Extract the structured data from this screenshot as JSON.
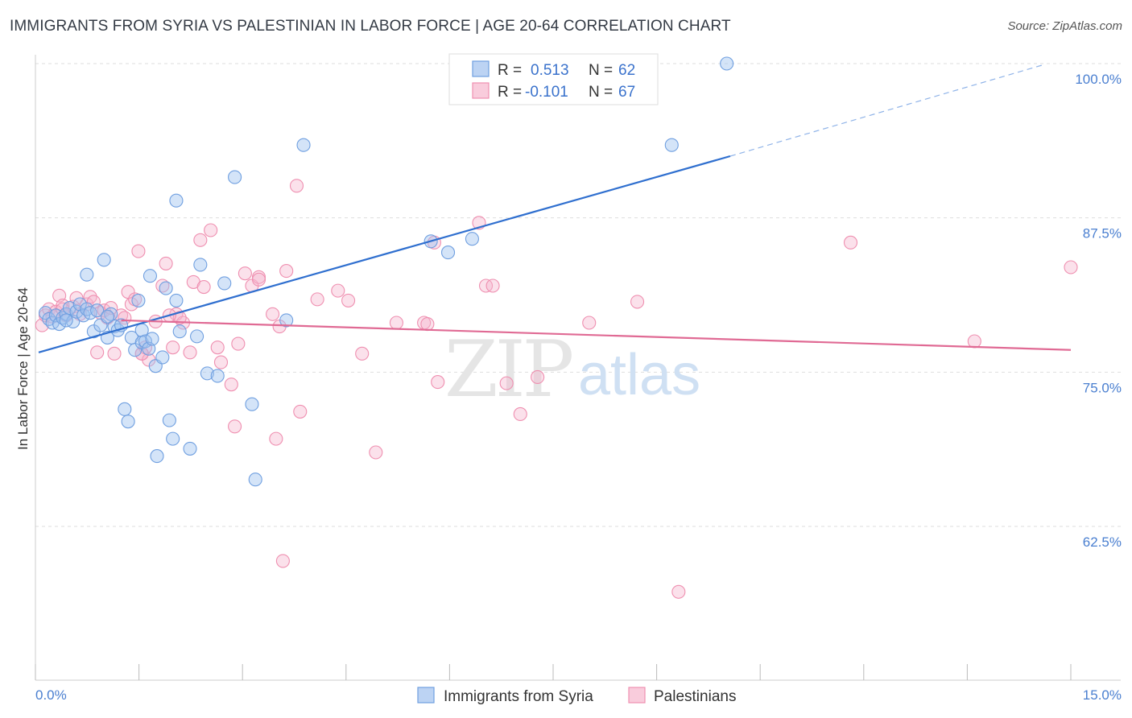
{
  "title": "IMMIGRANTS FROM SYRIA VS PALESTINIAN IN LABOR FORCE | AGE 20-64 CORRELATION CHART",
  "source": "Source: ZipAtlas.com",
  "watermark": {
    "zip": "ZIP",
    "atlas": "atlas"
  },
  "colors": {
    "syria": "#6f9fe0",
    "syria_line": "#2f6fcf",
    "pal": "#ef8fb0",
    "pal_line": "#e06a94",
    "tick_text": "#4a7fd0"
  },
  "legend_box": [
    {
      "r_label": "R =",
      "r_value": "0.513",
      "n_label": "N =",
      "n_value": "62"
    },
    {
      "r_label": "R =",
      "r_value": "-0.101",
      "n_label": "N =",
      "n_value": "67"
    }
  ],
  "chart_data": {
    "type": "scatter",
    "xlabel": "",
    "ylabel": "In Labor Force | Age 20-64",
    "xlim": [
      0,
      15
    ],
    "ylim": [
      52,
      101.5
    ],
    "x_tick_labels": [
      {
        "v": 0,
        "t": "0.0%"
      },
      {
        "v": 15,
        "t": "15.0%"
      }
    ],
    "y_tick_labels": [
      {
        "v": 100,
        "t": "100.0%"
      },
      {
        "v": 87.5,
        "t": "87.5%"
      },
      {
        "v": 75,
        "t": "75.0%"
      },
      {
        "v": 62.5,
        "t": "62.5%"
      }
    ],
    "grid": true,
    "legend": "bottom",
    "series": [
      {
        "name": "Immigrants from Syria",
        "trend": {
          "x0": 0,
          "y0": 76.6,
          "x1": 10.05,
          "y1": 92.5,
          "dash_to_x": 14.6,
          "dash_to_y": 99.9
        },
        "points": [
          [
            0.1,
            79.8
          ],
          [
            0.15,
            79.3
          ],
          [
            0.2,
            79.0
          ],
          [
            0.25,
            79.6
          ],
          [
            0.3,
            78.9
          ],
          [
            0.35,
            79.4
          ],
          [
            0.4,
            79.7
          ],
          [
            0.45,
            80.2
          ],
          [
            0.5,
            79.1
          ],
          [
            0.55,
            79.9
          ],
          [
            0.6,
            80.5
          ],
          [
            0.65,
            79.6
          ],
          [
            0.7,
            80.1
          ],
          [
            0.75,
            79.8
          ],
          [
            0.8,
            78.3
          ],
          [
            0.85,
            80.0
          ],
          [
            0.9,
            78.8
          ],
          [
            0.95,
            84.1
          ],
          [
            1.0,
            77.8
          ],
          [
            1.05,
            79.7
          ],
          [
            0.7,
            82.9
          ],
          [
            1.1,
            78.7
          ],
          [
            1.15,
            78.4
          ],
          [
            1.2,
            78.8
          ],
          [
            1.25,
            72.0
          ],
          [
            1.3,
            71.0
          ],
          [
            1.35,
            77.8
          ],
          [
            1.4,
            76.8
          ],
          [
            1.45,
            80.8
          ],
          [
            1.5,
            78.4
          ],
          [
            1.5,
            77.4
          ],
          [
            1.55,
            77.5
          ],
          [
            1.6,
            76.9
          ],
          [
            1.62,
            82.8
          ],
          [
            1.65,
            77.7
          ],
          [
            1.7,
            75.5
          ],
          [
            1.72,
            68.2
          ],
          [
            1.8,
            76.2
          ],
          [
            1.85,
            81.8
          ],
          [
            1.9,
            71.1
          ],
          [
            1.95,
            69.6
          ],
          [
            2.0,
            80.8
          ],
          [
            2.05,
            78.3
          ],
          [
            2.0,
            88.9
          ],
          [
            2.2,
            68.8
          ],
          [
            2.3,
            77.9
          ],
          [
            2.35,
            83.7
          ],
          [
            2.45,
            74.9
          ],
          [
            2.6,
            74.7
          ],
          [
            2.7,
            82.2
          ],
          [
            2.85,
            90.8
          ],
          [
            3.1,
            72.4
          ],
          [
            3.15,
            66.3
          ],
          [
            3.6,
            79.2
          ],
          [
            3.85,
            93.4
          ],
          [
            5.7,
            85.6
          ],
          [
            5.95,
            84.7
          ],
          [
            6.3,
            85.8
          ],
          [
            9.2,
            93.4
          ],
          [
            10.0,
            100.0
          ],
          [
            1.0,
            79.5
          ],
          [
            0.4,
            79.2
          ]
        ]
      },
      {
        "name": "Palestinians",
        "trend": {
          "x0": 1.2,
          "y0": 79.2,
          "x1": 15.0,
          "y1": 76.8
        },
        "points": [
          [
            0.05,
            78.8
          ],
          [
            0.1,
            79.6
          ],
          [
            0.15,
            80.1
          ],
          [
            0.2,
            79.5
          ],
          [
            0.25,
            79.9
          ],
          [
            0.3,
            81.2
          ],
          [
            0.35,
            80.4
          ],
          [
            0.4,
            79.6
          ],
          [
            0.5,
            80.3
          ],
          [
            0.55,
            81.0
          ],
          [
            0.6,
            79.7
          ],
          [
            0.7,
            80.5
          ],
          [
            0.75,
            81.1
          ],
          [
            0.8,
            80.7
          ],
          [
            0.85,
            76.6
          ],
          [
            0.9,
            79.8
          ],
          [
            0.95,
            80.0
          ],
          [
            1.0,
            79.4
          ],
          [
            1.05,
            80.2
          ],
          [
            1.1,
            76.5
          ],
          [
            1.2,
            79.6
          ],
          [
            1.3,
            81.5
          ],
          [
            1.35,
            80.5
          ],
          [
            1.4,
            80.9
          ],
          [
            1.45,
            84.8
          ],
          [
            1.5,
            76.5
          ],
          [
            1.55,
            77.0
          ],
          [
            1.6,
            76.0
          ],
          [
            1.7,
            79.1
          ],
          [
            1.8,
            82.0
          ],
          [
            1.85,
            83.8
          ],
          [
            1.95,
            77.0
          ],
          [
            2.0,
            79.7
          ],
          [
            2.1,
            79.0
          ],
          [
            2.2,
            76.6
          ],
          [
            2.25,
            82.3
          ],
          [
            2.35,
            85.7
          ],
          [
            2.4,
            81.9
          ],
          [
            2.5,
            86.5
          ],
          [
            2.6,
            77.0
          ],
          [
            2.65,
            75.8
          ],
          [
            2.8,
            74.0
          ],
          [
            2.85,
            70.6
          ],
          [
            2.9,
            77.3
          ],
          [
            3.0,
            83.0
          ],
          [
            3.1,
            82.0
          ],
          [
            3.2,
            82.7
          ],
          [
            3.4,
            79.7
          ],
          [
            3.45,
            69.6
          ],
          [
            3.5,
            78.7
          ],
          [
            3.6,
            83.2
          ],
          [
            3.75,
            90.1
          ],
          [
            3.8,
            71.8
          ],
          [
            4.05,
            80.9
          ],
          [
            4.5,
            80.8
          ],
          [
            4.7,
            76.5
          ],
          [
            4.9,
            68.5
          ],
          [
            5.2,
            79.0
          ],
          [
            5.6,
            79.0
          ],
          [
            5.65,
            78.9
          ],
          [
            5.8,
            74.2
          ],
          [
            6.4,
            87.1
          ],
          [
            6.5,
            82.0
          ],
          [
            6.6,
            82.0
          ],
          [
            6.8,
            74.1
          ],
          [
            7.0,
            71.6
          ],
          [
            7.25,
            74.6
          ]
        ],
        "extra_points": [
          [
            8.0,
            79.0
          ],
          [
            8.7,
            80.7
          ],
          [
            9.3,
            57.2
          ],
          [
            11.8,
            85.5
          ],
          [
            13.6,
            77.5
          ],
          [
            15.0,
            83.5
          ],
          [
            4.35,
            81.6
          ],
          [
            3.55,
            59.7
          ],
          [
            5.75,
            85.5
          ],
          [
            2.05,
            79.4
          ],
          [
            1.25,
            79.4
          ],
          [
            1.9,
            79.6
          ],
          [
            3.2,
            82.5
          ],
          [
            1.5,
            76.5
          ],
          [
            0.35,
            80.1
          ]
        ]
      }
    ]
  }
}
